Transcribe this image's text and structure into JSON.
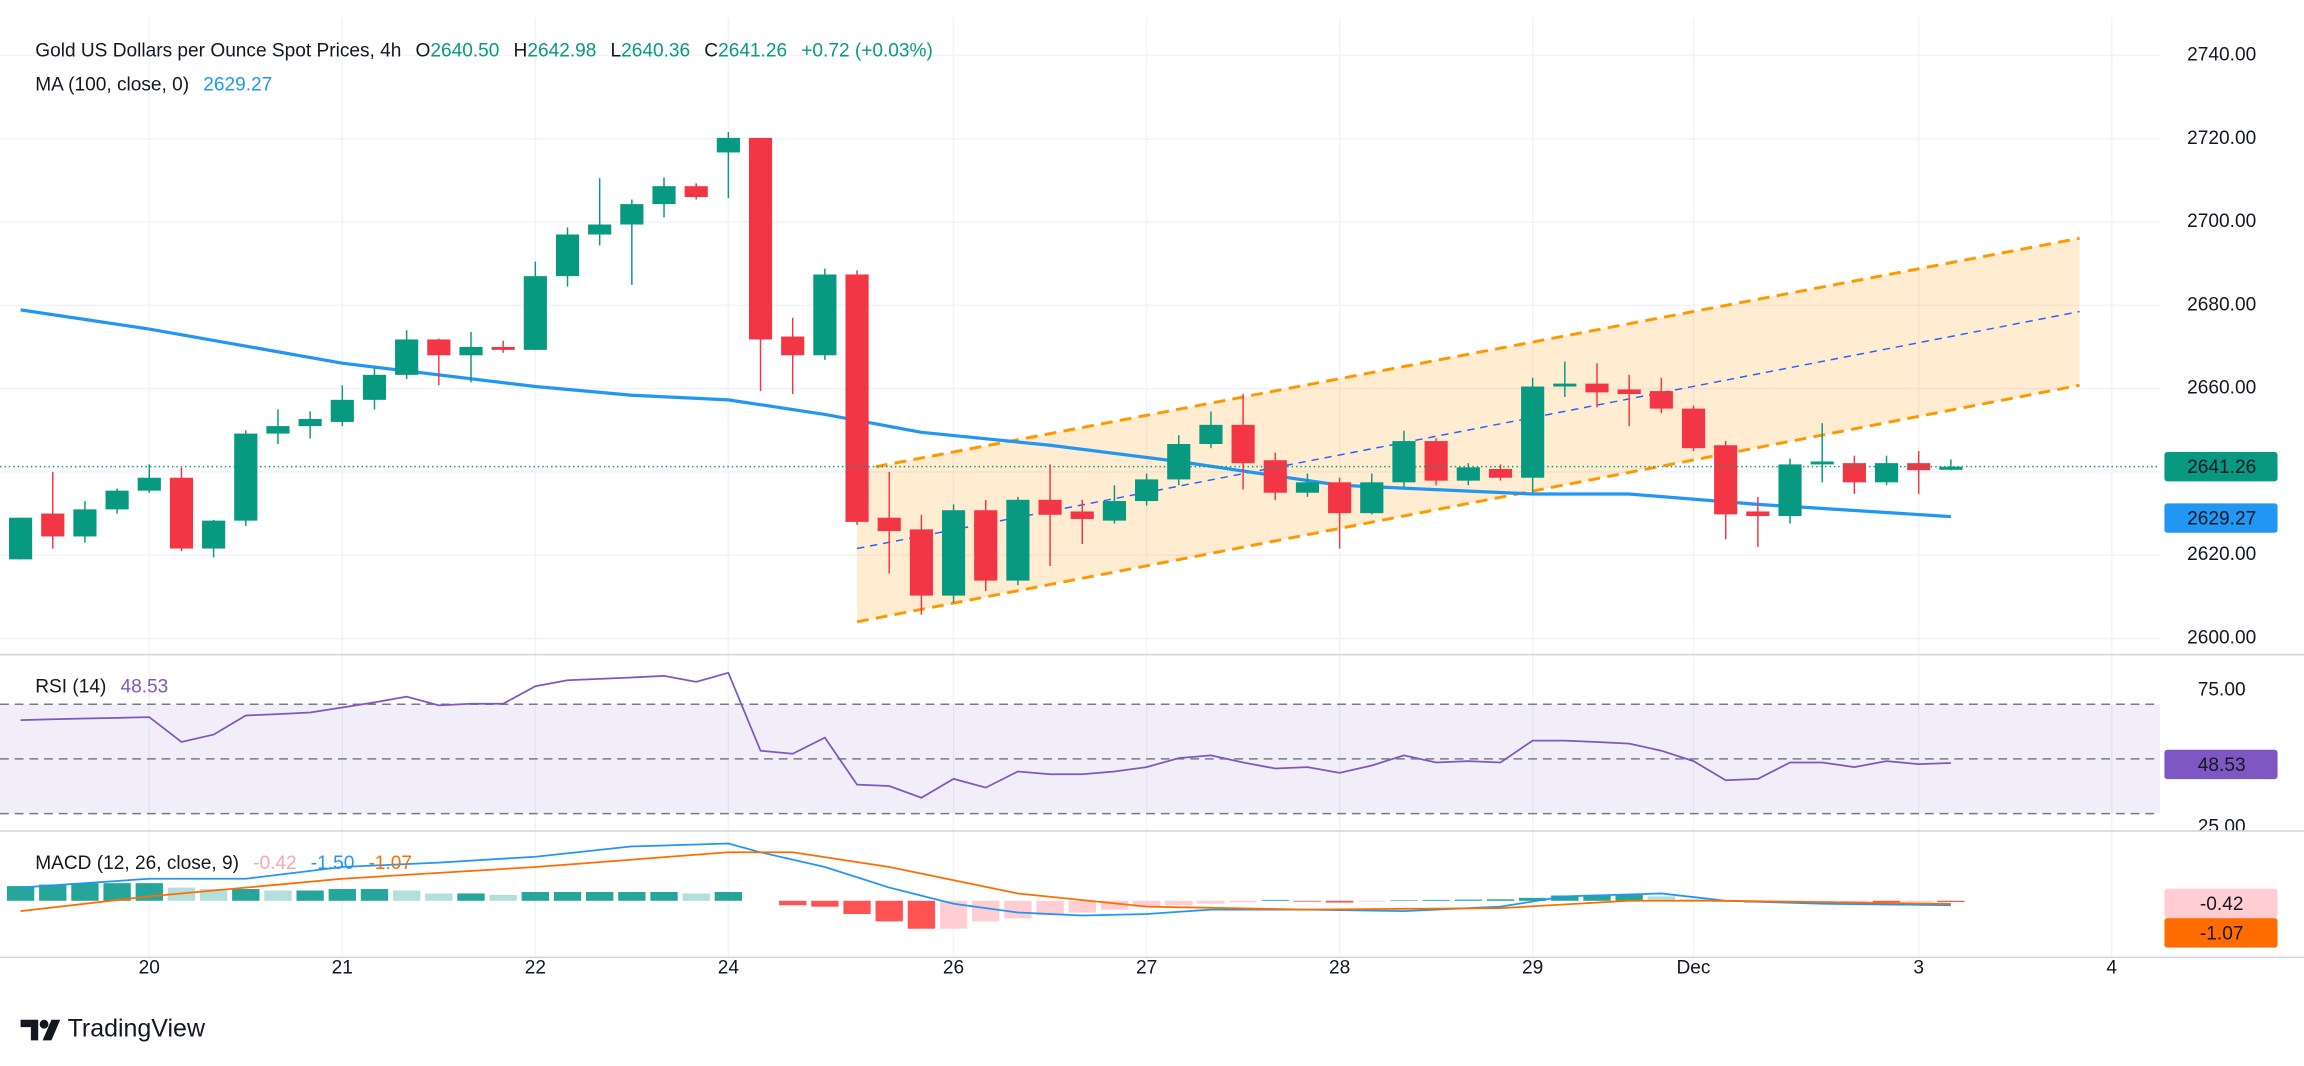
{
  "brand": "TradingView",
  "chart_data": [
    {
      "type": "candlestick",
      "title": "Gold US Dollars per Ounce Spot Prices, 4h",
      "quote": [
        {
          "name": "O",
          "label": "2640.50"
        },
        {
          "name": "H",
          "label": "2642.98"
        },
        {
          "name": "L",
          "label": "2640.36"
        },
        {
          "name": "C",
          "label": "2641.26"
        }
      ],
      "change": "+0.72 (+0.03%)",
      "up_color": "#089981",
      "down_color": "#f23645",
      "grid": true,
      "xlim": [
        -0.64,
        66.5
      ],
      "xticks": [
        {
          "value": 4,
          "label": "20"
        },
        {
          "value": 10,
          "label": "21"
        },
        {
          "value": 16,
          "label": "22"
        },
        {
          "value": 22,
          "label": "24"
        },
        {
          "value": 29,
          "label": "26"
        },
        {
          "value": 35,
          "label": "27"
        },
        {
          "value": 41,
          "label": "28"
        },
        {
          "value": 47,
          "label": "29"
        },
        {
          "value": 52,
          "label": "Dec"
        },
        {
          "value": 59,
          "label": "3"
        },
        {
          "value": 65,
          "label": "4"
        }
      ],
      "ylim": [
        2597,
        2748
      ],
      "yticks": [
        {
          "value": 2600,
          "label": "2600.00"
        },
        {
          "value": 2620,
          "label": "2620.00"
        },
        {
          "value": 2640,
          "label": "2640.00"
        },
        {
          "value": 2660,
          "label": "2660.00"
        },
        {
          "value": 2680,
          "label": "2680.00"
        },
        {
          "value": 2700,
          "label": "2700.00"
        },
        {
          "value": 2720,
          "label": "2720.00"
        },
        {
          "value": 2740,
          "label": "2740.00"
        }
      ],
      "open": [
        2619,
        2630,
        2624.5,
        2631,
        2635.5,
        2638.6,
        2621.6,
        2628.3,
        2649.2,
        2651,
        2652,
        2657.3,
        2663.3,
        2671.8,
        2668,
        2670,
        2669.3,
        2687,
        2697,
        2699.4,
        2704.3,
        2708.6,
        2716.7,
        2720.2,
        2672.5,
        2668,
        2687.4,
        2629,
        2626.2,
        2610.3,
        2630.8,
        2613.9,
        2633.3,
        2630.5,
        2628.3,
        2633,
        2638.2,
        2646.7,
        2651.3,
        2642.8,
        2635,
        2637.5,
        2630.1,
        2637.5,
        2647.4,
        2637.9,
        2640.7,
        2638.6,
        2660.5,
        2661.2,
        2659.8,
        2659.4,
        2655.2,
        2646.4,
        2630.5,
        2629.4,
        2641.8,
        2642.1,
        2637.5,
        2642.1,
        2640.5
      ],
      "high": [
        2629,
        2640,
        2633,
        2636,
        2641.8,
        2641,
        2628.5,
        2650,
        2655,
        2654.5,
        2660.8,
        2665,
        2674,
        2672,
        2673.6,
        2671.5,
        2690.5,
        2698.7,
        2710.5,
        2705.4,
        2710.7,
        2709.3,
        2721.6,
        2720.2,
        2677,
        2688.8,
        2688.4,
        2640,
        2629.7,
        2632.2,
        2633.3,
        2634,
        2641.8,
        2633.3,
        2636.8,
        2639.6,
        2648.8,
        2654.5,
        2658.7,
        2644.6,
        2639.6,
        2638.6,
        2639.6,
        2649.9,
        2648.1,
        2642.1,
        2641.8,
        2662.6,
        2666.5,
        2666.1,
        2663.3,
        2662.6,
        2655.9,
        2647.4,
        2634,
        2643.2,
        2651.7,
        2643.9,
        2643.9,
        2645,
        2642.98
      ],
      "low": [
        2619,
        2621.6,
        2623,
        2630,
        2635,
        2621,
        2619.5,
        2627,
        2646.7,
        2648,
        2651,
        2655,
        2662.3,
        2660.8,
        2661.5,
        2668.6,
        2669.3,
        2684.5,
        2694.4,
        2684.9,
        2701.1,
        2705.4,
        2705.7,
        2659.4,
        2658.7,
        2666.9,
        2627.3,
        2615.6,
        2605.7,
        2608.5,
        2611.4,
        2612.8,
        2617.4,
        2622.7,
        2627.6,
        2631.9,
        2636.8,
        2645.7,
        2635.8,
        2633.3,
        2634,
        2621.6,
        2629.8,
        2636.4,
        2636.8,
        2636.8,
        2637.9,
        2635,
        2658,
        2655.5,
        2651,
        2654.1,
        2645,
        2623.8,
        2622,
        2627.6,
        2637.5,
        2634.7,
        2636.8,
        2634.7,
        2640.36
      ],
      "close": [
        2629,
        2624.5,
        2631,
        2635.5,
        2638.6,
        2621.6,
        2628.3,
        2649.2,
        2651,
        2652.7,
        2657.3,
        2663.3,
        2671.8,
        2668,
        2670,
        2669.3,
        2687,
        2697,
        2699.4,
        2704.3,
        2708.6,
        2706,
        2720.2,
        2671.8,
        2668,
        2687.4,
        2628,
        2625.8,
        2610.3,
        2630.8,
        2613.9,
        2633.3,
        2629.7,
        2628.7,
        2633,
        2638.2,
        2646.7,
        2651.3,
        2642.1,
        2635,
        2637.5,
        2630.1,
        2637.5,
        2647.4,
        2637.9,
        2641.1,
        2638.6,
        2660.5,
        2661.2,
        2659.1,
        2658.7,
        2655.2,
        2645.7,
        2629.8,
        2629.4,
        2641.8,
        2642.5,
        2637.5,
        2642.1,
        2640.4,
        2641.26
      ],
      "overlays": [
        {
          "type": "line",
          "name": "MA (100, close, 0)",
          "color": "#2196f3",
          "x": [
            0,
            4,
            10,
            16,
            19,
            22,
            25,
            28,
            32,
            36,
            41,
            47,
            50,
            54,
            60
          ],
          "values": [
            2678.9,
            2674.3,
            2666.1,
            2660.5,
            2658.4,
            2657.3,
            2653.8,
            2649.5,
            2646.4,
            2642.5,
            2636.8,
            2634.7,
            2634.7,
            2632.2,
            2629.27
          ]
        }
      ],
      "channel": {
        "x": [
          26,
          64
        ],
        "upper": [
          2640.4,
          2696.1
        ],
        "middle": [
          2621.6,
          2678.5
        ],
        "lower": [
          2604,
          2660.8
        ],
        "color": "#ff9800",
        "middle_color": "#2962ff"
      }
    },
    {
      "type": "line",
      "title": "RSI (14)",
      "color": "#7e57c2",
      "values": [
        64.2,
        64.5,
        64.8,
        65,
        65.3,
        56.2,
        58.9,
        65.9,
        66.4,
        67,
        68.8,
        70.7,
        72.8,
        69.6,
        70.2,
        70.2,
        76.6,
        78.8,
        79.3,
        79.8,
        80.4,
        78.2,
        81.5,
        53,
        51.9,
        57.8,
        40.6,
        40.1,
        35.8,
        42.7,
        39.5,
        45.4,
        44.4,
        44.4,
        45.4,
        47,
        50.3,
        51.3,
        48.7,
        46.5,
        47,
        44.9,
        47.6,
        51.3,
        48.7,
        49.2,
        48.7,
        56.7,
        56.7,
        56.2,
        55.6,
        53,
        49.2,
        42.2,
        42.7,
        48.7,
        48.7,
        47,
        49.2,
        48.1,
        48.53
      ],
      "ylim": [
        23.9,
        86.8
      ],
      "yticks": [
        {
          "value": 75,
          "label": "75.00"
        },
        {
          "value": 25,
          "label": "25.00"
        }
      ],
      "bands": [
        30,
        70
      ],
      "midline": 50
    },
    {
      "type": "macd",
      "title": "MACD (12, 26, close, 9)",
      "ylim": [
        -18.5,
        22.5
      ],
      "histogram": {
        "colors": [
          "#26a69a",
          "#b2dfdb",
          "#ff5252",
          "#ffcdd2"
        ],
        "values": [
          5,
          5.5,
          6,
          6,
          6,
          4.5,
          4,
          4,
          3.5,
          3.5,
          4,
          4,
          3.5,
          2.5,
          2.5,
          2,
          3,
          3,
          3,
          3,
          3,
          2.5,
          3,
          0,
          -1.5,
          -2,
          -4.5,
          -7,
          -9.5,
          -9.5,
          -7,
          -6,
          -5,
          -4,
          -3,
          -2,
          -1.5,
          -1,
          -0.5,
          0.3,
          -0.3,
          -0.6,
          -0.3,
          0.2,
          0.3,
          0.4,
          0.5,
          1,
          1.8,
          2,
          2,
          1.5,
          0.5,
          -0.3,
          -0.6,
          -0.5,
          -0.4,
          -0.4,
          -0.5,
          -0.4,
          -0.42
        ]
      },
      "macd": {
        "color": "#2196f3",
        "x": [
          0,
          4,
          7,
          10,
          13,
          16,
          19,
          22,
          23,
          25,
          27,
          29,
          31,
          33,
          35,
          37,
          40,
          43,
          46,
          48,
          51,
          53,
          56,
          60
        ],
        "values": [
          4.5,
          7.5,
          7.5,
          11.5,
          13,
          15,
          18.5,
          19.5,
          16.5,
          11.5,
          4.5,
          -1,
          -4,
          -5,
          -4.5,
          -3,
          -3,
          -3.5,
          -2,
          1.5,
          2.5,
          0,
          -1,
          -1.5
        ],
        "value_labels": [
          null,
          null,
          null,
          null,
          null,
          null,
          null,
          null,
          null,
          null,
          null,
          null,
          null,
          null,
          null,
          null,
          null,
          null,
          null,
          null,
          null,
          null,
          null,
          "-1.50"
        ]
      },
      "signal": {
        "color": "#ff6d00",
        "x": [
          0,
          4,
          10,
          16,
          22,
          24,
          27,
          31,
          35,
          40,
          46,
          50,
          53,
          60
        ],
        "values": [
          -3.5,
          1.5,
          7.5,
          11.5,
          16.5,
          16.5,
          11.5,
          2.5,
          -2,
          -3,
          -2.5,
          0,
          0,
          -1.07
        ]
      }
    }
  ]
}
